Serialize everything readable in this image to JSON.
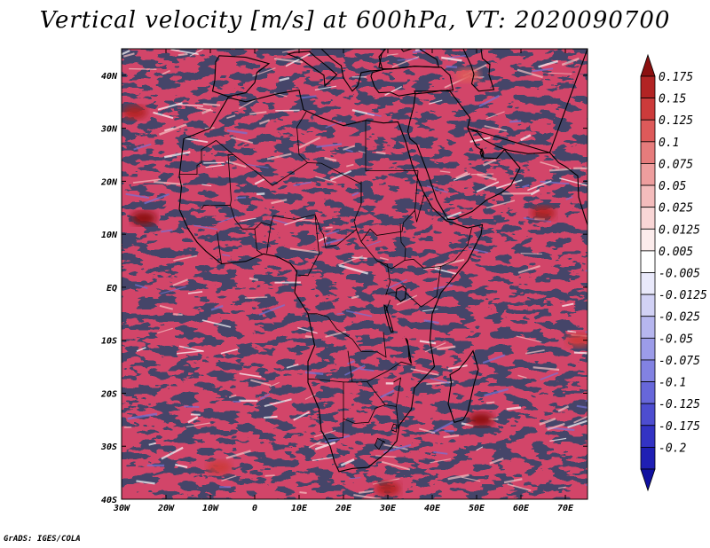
{
  "title": "Vertical velocity [m/s] at 600hPa, VT: 2020090700",
  "credit": "GrADS: IGES/COLA",
  "map": {
    "lon_range": [
      -30,
      75
    ],
    "lat_range": [
      -40,
      45
    ],
    "lon_ticks": [
      {
        "lon": -30,
        "label": "30W"
      },
      {
        "lon": -20,
        "label": "20W"
      },
      {
        "lon": -10,
        "label": "10W"
      },
      {
        "lon": 0,
        "label": "0"
      },
      {
        "lon": 10,
        "label": "10E"
      },
      {
        "lon": 20,
        "label": "20E"
      },
      {
        "lon": 30,
        "label": "30E"
      },
      {
        "lon": 40,
        "label": "40E"
      },
      {
        "lon": 50,
        "label": "50E"
      },
      {
        "lon": 60,
        "label": "60E"
      },
      {
        "lon": 70,
        "label": "70E"
      }
    ],
    "lat_ticks": [
      {
        "lat": 40,
        "label": "40N"
      },
      {
        "lat": 30,
        "label": "30N"
      },
      {
        "lat": 20,
        "label": "20N"
      },
      {
        "lat": 10,
        "label": "10N"
      },
      {
        "lat": 0,
        "label": "EQ"
      },
      {
        "lat": -10,
        "label": "10S"
      },
      {
        "lat": -20,
        "label": "20S"
      },
      {
        "lat": -30,
        "label": "30S"
      },
      {
        "lat": -40,
        "label": "40S"
      }
    ],
    "hotspots": [
      {
        "lon": -27,
        "lat": 33,
        "value": 0.15
      },
      {
        "lon": -25,
        "lat": 13,
        "value": 0.175
      },
      {
        "lon": 65,
        "lat": 14,
        "value": 0.15
      },
      {
        "lon": 51,
        "lat": -25,
        "value": 0.175
      },
      {
        "lon": 30,
        "lat": -38,
        "value": 0.15
      },
      {
        "lon": -8,
        "lat": -34,
        "value": 0.125
      },
      {
        "lon": 48,
        "lat": 40,
        "value": 0.1
      },
      {
        "lon": 73,
        "lat": -10,
        "value": 0.125
      }
    ]
  },
  "colorbar": {
    "colors": [
      "#8b1010",
      "#b22424",
      "#cc3b3b",
      "#dd5a5a",
      "#e67c7c",
      "#ee9e9e",
      "#f4bcbc",
      "#f9d6d6",
      "#fcecec",
      "#ffffff",
      "#e9e9fb",
      "#d1d1f5",
      "#b6b6ef",
      "#9c9ce9",
      "#8282e2",
      "#6767da",
      "#4d4dd0",
      "#3333c4",
      "#1f1fb4",
      "#1010a0"
    ],
    "labels": [
      "0.175",
      "0.15",
      "0.125",
      "0.1",
      "0.075",
      "0.05",
      "0.025",
      "0.0125",
      "0.005",
      "-0.005",
      "-0.0125",
      "-0.025",
      "-0.05",
      "-0.075",
      "-0.1",
      "-0.125",
      "-0.175",
      "-0.2"
    ]
  }
}
